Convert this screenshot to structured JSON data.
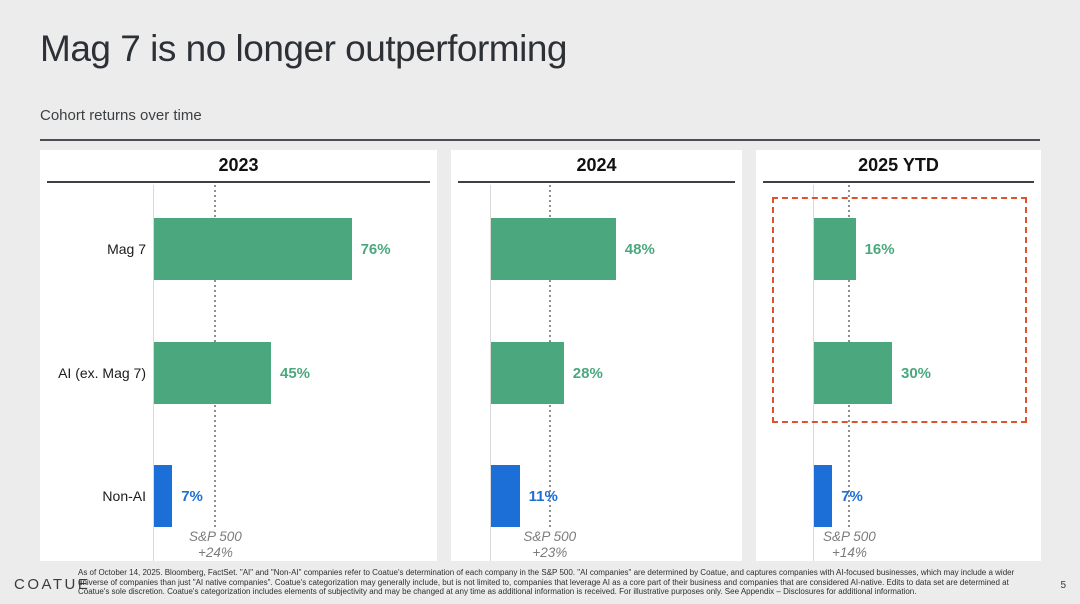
{
  "slide": {
    "title": "Mag 7 is no longer outperforming",
    "subtitle": "Cohort returns over time",
    "logo": "COATUE",
    "page_number": "5",
    "footnote": "As of October 14, 2025. Bloomberg, FactSet. \"AI\" and \"Non-AI\" companies refer to Coatue's determination of each company in the S&P 500. \"AI companies\" are determined by Coatue, and captures companies with AI-focused businesses, which may include a wider universe of companies than just \"AI native companies\". Coatue's categorization may generally include, but is not limited to, companies that leverage AI as a core part of their business and companies that are considered AI-native. Edits to data set are determined at Coatue's sole discretion. Coatue's categorization includes elements of subjectivity and may be changed at any time as additional information is received. For illustrative purposes only. See Appendix – Disclosures for additional information."
  },
  "colors": {
    "green": "#4ba87e",
    "blue": "#1c6fd6",
    "highlight_box": "#e2512e",
    "background": "#ececec",
    "card": "#ffffff"
  },
  "chart_data": [
    {
      "type": "bar",
      "orientation": "horizontal",
      "title": "2023",
      "categories": [
        "Mag 7",
        "AI (ex. Mag 7)",
        "Non-AI"
      ],
      "values": [
        76,
        45,
        7
      ],
      "value_labels": [
        "76%",
        "45%",
        "7%"
      ],
      "row_color_keys": [
        "green",
        "green",
        "blue"
      ],
      "show_category_labels": true,
      "unit": "%",
      "xlim": [
        0,
        110
      ],
      "benchmark": {
        "label": "S&P 500",
        "value": 24,
        "value_label": "+24%"
      },
      "highlight": false
    },
    {
      "type": "bar",
      "orientation": "horizontal",
      "title": "2024",
      "categories": [
        "Mag 7",
        "AI (ex. Mag 7)",
        "Non-AI"
      ],
      "values": [
        48,
        28,
        11
      ],
      "value_labels": [
        "48%",
        "28%",
        "11%"
      ],
      "row_color_keys": [
        "green",
        "green",
        "blue"
      ],
      "show_category_labels": false,
      "unit": "%",
      "xlim": [
        0,
        110
      ],
      "benchmark": {
        "label": "S&P 500",
        "value": 23,
        "value_label": "+23%"
      },
      "highlight": false
    },
    {
      "type": "bar",
      "orientation": "horizontal",
      "title": "2025 YTD",
      "categories": [
        "Mag 7",
        "AI (ex. Mag 7)",
        "Non-AI"
      ],
      "values": [
        16,
        30,
        7
      ],
      "value_labels": [
        "16%",
        "30%",
        "7%"
      ],
      "row_color_keys": [
        "green",
        "green",
        "blue"
      ],
      "show_category_labels": false,
      "unit": "%",
      "xlim": [
        0,
        110
      ],
      "benchmark": {
        "label": "S&P 500",
        "value": 14,
        "value_label": "+14%"
      },
      "highlight": true,
      "highlight_note": "dashed box around Mag 7 and AI (ex. Mag 7) bars"
    }
  ]
}
